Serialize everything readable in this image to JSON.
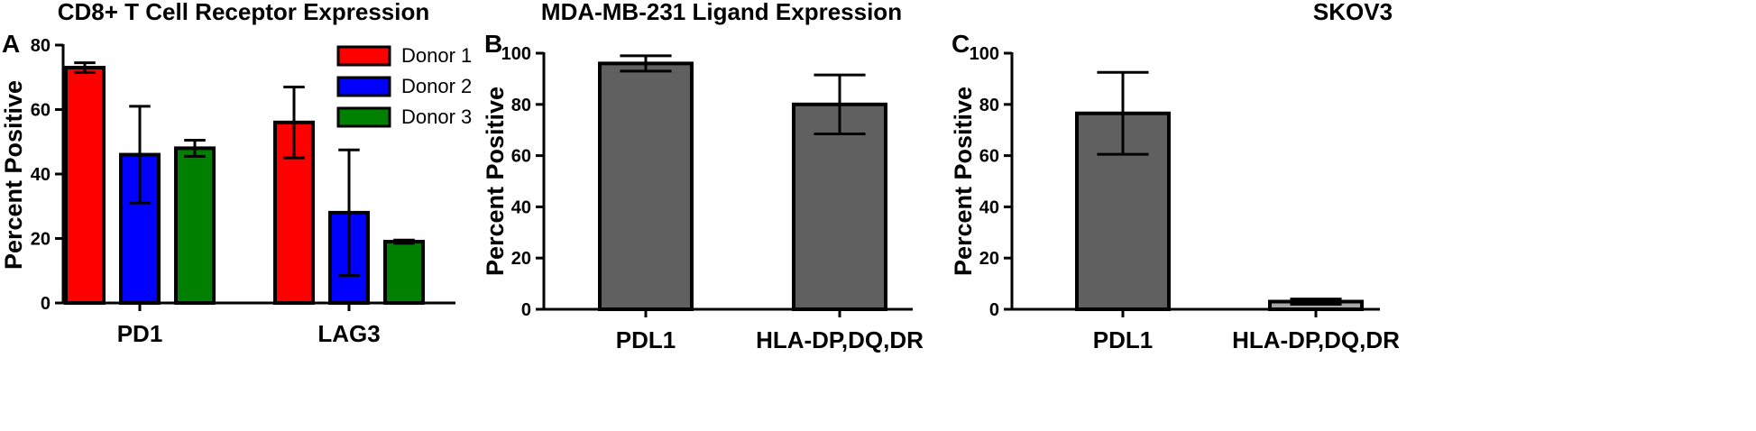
{
  "chart_data": [
    {
      "type": "bar",
      "panel_letter": "A",
      "title": "CD8+ T Cell Receptor Expression",
      "ylabel": "Percent Positive",
      "xlabel": "",
      "categories": [
        "PD1",
        "LAG3"
      ],
      "ylim": [
        0,
        80
      ],
      "yticks": [
        0,
        20,
        40,
        60,
        80
      ],
      "grid": false,
      "legend_position": "top-right",
      "series": [
        {
          "name": "Donor 1",
          "color": "#ff0000",
          "values": [
            73,
            56
          ],
          "errors": [
            1.5,
            11
          ]
        },
        {
          "name": "Donor 2",
          "color": "#0000ff",
          "values": [
            46,
            28
          ],
          "errors": [
            15,
            19.5
          ]
        },
        {
          "name": "Donor 3",
          "color": "#008000",
          "values": [
            48,
            19
          ],
          "errors": [
            2.5,
            0.5
          ]
        }
      ]
    },
    {
      "type": "bar",
      "panel_letter": "B",
      "title": "MDA-MB-231 Ligand Expression",
      "ylabel": "Percent Positive",
      "xlabel": "",
      "categories": [
        "PDL1",
        "HLA-DP,DQ,DR"
      ],
      "ylim": [
        0,
        100
      ],
      "yticks": [
        0,
        20,
        40,
        60,
        80,
        100
      ],
      "grid": false,
      "series": [
        {
          "values": [
            96,
            80
          ],
          "errors": [
            3,
            11.5
          ],
          "colors": [
            "#606060",
            "#606060"
          ]
        }
      ]
    },
    {
      "type": "bar",
      "panel_letter": "C",
      "title": "SKOV3",
      "ylabel": "Percent Positive",
      "xlabel": "",
      "categories": [
        "PDL1",
        "HLA-DP,DQ,DR"
      ],
      "ylim": [
        0,
        100
      ],
      "yticks": [
        0,
        20,
        40,
        60,
        80,
        100
      ],
      "grid": false,
      "series": [
        {
          "values": [
            76.5,
            3
          ],
          "errors": [
            16,
            1
          ],
          "colors": [
            "#606060",
            "#a6a6a6"
          ]
        }
      ]
    }
  ]
}
